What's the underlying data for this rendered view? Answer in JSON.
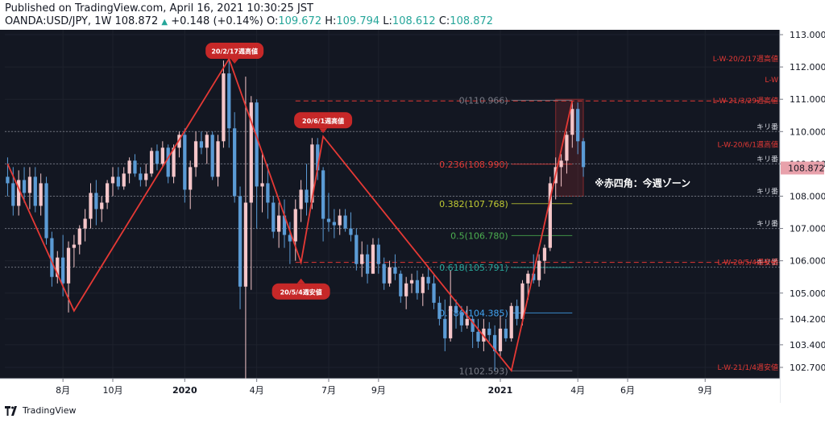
{
  "header": {
    "published": "Published on TradingView.com, April 16, 2021 10:30:25 JST",
    "symbol": "OANDA:USD/JPY, 1W",
    "last": "108.872",
    "change": "+0.148 (+0.14%)",
    "o_label": "O:",
    "o_value": "109.672",
    "h_label": "H:",
    "h_value": "109.794",
    "l_label": "L:",
    "l_value": "108.612",
    "c_label": "C:",
    "c_value": "108.872"
  },
  "footer": {
    "brand": "TradingView"
  },
  "colors": {
    "background": "#131722",
    "bull": "#f5c6c9",
    "bear": "#5b9bd5",
    "zigzag": "#e53935",
    "label_bg": "#c62828",
    "price_badge": "#e8a1ab"
  },
  "chart_data": {
    "type": "candlestick",
    "ylim": [
      102.35,
      113.15
    ],
    "yticks": [
      "113.000",
      "112.000",
      "111.000",
      "110.000",
      "109.000",
      "108.000",
      "107.000",
      "106.000",
      "105.000",
      "104.200",
      "103.400",
      "102.700"
    ],
    "ytick_values": [
      113.0,
      112.0,
      111.0,
      110.0,
      109.0,
      108.0,
      107.0,
      106.0,
      105.0,
      104.2,
      103.4,
      102.7
    ],
    "xticks": [
      {
        "label": "8月",
        "week": 10
      },
      {
        "label": "10月",
        "week": 19
      },
      {
        "label": "2020",
        "week": 32
      },
      {
        "label": "4月",
        "week": 45
      },
      {
        "label": "7月",
        "week": 58
      },
      {
        "label": "9月",
        "week": 67
      },
      {
        "label": "2021",
        "week": 89
      },
      {
        "label": "4月",
        "week": 103
      },
      {
        "label": "6月",
        "week": 112
      },
      {
        "label": "9月",
        "week": 126
      }
    ],
    "last_price": {
      "value": 108.872,
      "label": "108.872"
    },
    "current_week_zone": {
      "from_week": 99,
      "to_week": 104,
      "low": 108.0,
      "high": 111.0,
      "label": "※赤四角：今週ゾーン"
    },
    "horizontal_lines": [
      {
        "value": 110.0,
        "label": "キリ番"
      },
      {
        "value": 109.0,
        "label": "キリ番"
      },
      {
        "value": 108.0,
        "label": "キリ番"
      },
      {
        "value": 107.0,
        "label": "キリ番"
      },
      {
        "value": 105.8,
        "label": "キリ番"
      }
    ],
    "red_levels": [
      {
        "value": 112.25,
        "label": "L-W-20/2/17週高値"
      },
      {
        "value": 111.6,
        "label": "L-W"
      },
      {
        "value": 110.95,
        "label": "L-W-21/3/29週高値",
        "dashed": true
      },
      {
        "value": 109.6,
        "label": "L-W-20/6/1週高値"
      },
      {
        "value": 105.95,
        "label": "L-W-20/5/4週安値",
        "dashed": true
      },
      {
        "value": 102.7,
        "label": "L-W-21/1/4週安値"
      }
    ],
    "fibonacci": [
      {
        "ratio_label": "0(110.966)",
        "value": 110.966,
        "color": "#787b86"
      },
      {
        "ratio_label": "0.236(108.990)",
        "value": 108.99,
        "color": "#e53935"
      },
      {
        "ratio_label": "0.382(107.768)",
        "value": 107.768,
        "color": "#c0ca33"
      },
      {
        "ratio_label": "0.5(106.780)",
        "value": 106.78,
        "color": "#4caf50"
      },
      {
        "ratio_label": "0.618(105.791)",
        "value": 105.791,
        "color": "#26a69a"
      },
      {
        "ratio_label": "0.786(104.385)",
        "value": 104.385,
        "color": "#42a5f5"
      },
      {
        "ratio_label": "1(102.593)",
        "value": 102.593,
        "color": "#787b86"
      }
    ],
    "zigzag": [
      {
        "week": 0,
        "value": 109.0
      },
      {
        "week": 12,
        "value": 104.45
      },
      {
        "week": 40,
        "value": 112.25
      },
      {
        "week": 53,
        "value": 105.95
      },
      {
        "week": 57,
        "value": 109.85
      },
      {
        "week": 91,
        "value": 102.6
      },
      {
        "week": 102,
        "value": 110.95
      }
    ],
    "annotations": [
      {
        "text": "20/2/17週高値",
        "week": 41,
        "value": 112.5,
        "tail": "down"
      },
      {
        "text": "20/6/1週高値",
        "week": 57,
        "value": 110.35,
        "tail": "down"
      },
      {
        "text": "20/5/4週安値",
        "week": 53,
        "value": 105.05,
        "tail": "up"
      }
    ],
    "candles": [
      [
        108.6,
        109.2,
        108.0,
        108.4
      ],
      [
        108.4,
        108.9,
        107.4,
        107.7
      ],
      [
        107.7,
        108.8,
        107.4,
        108.5
      ],
      [
        108.5,
        108.9,
        107.8,
        108.1
      ],
      [
        108.1,
        108.9,
        107.6,
        108.6
      ],
      [
        108.6,
        108.9,
        107.5,
        107.7
      ],
      [
        107.7,
        108.7,
        107.4,
        108.4
      ],
      [
        108.4,
        108.6,
        106.5,
        106.7
      ],
      [
        106.7,
        106.9,
        105.2,
        105.5
      ],
      [
        105.5,
        106.3,
        105.3,
        106.1
      ],
      [
        106.1,
        106.8,
        104.9,
        105.3
      ],
      [
        105.3,
        106.6,
        104.4,
        106.4
      ],
      [
        106.4,
        106.8,
        105.8,
        106.5
      ],
      [
        106.5,
        107.1,
        106.2,
        107.0
      ],
      [
        107.0,
        107.6,
        106.6,
        107.3
      ],
      [
        107.3,
        108.4,
        107.0,
        108.1
      ],
      [
        108.1,
        108.5,
        107.1,
        107.6
      ],
      [
        107.6,
        108.0,
        107.2,
        107.8
      ],
      [
        107.8,
        108.5,
        107.6,
        108.4
      ],
      [
        108.4,
        108.9,
        108.0,
        108.6
      ],
      [
        108.6,
        108.9,
        108.2,
        108.3
      ],
      [
        108.3,
        108.9,
        108.2,
        108.7
      ],
      [
        108.7,
        109.2,
        108.4,
        109.1
      ],
      [
        109.1,
        109.3,
        108.6,
        108.7
      ],
      [
        108.7,
        108.9,
        108.3,
        108.5
      ],
      [
        108.5,
        109.0,
        108.3,
        108.7
      ],
      [
        108.7,
        109.5,
        108.6,
        109.4
      ],
      [
        109.4,
        109.6,
        108.8,
        109.0
      ],
      [
        109.0,
        109.7,
        108.9,
        109.5
      ],
      [
        109.5,
        109.6,
        108.4,
        108.6
      ],
      [
        108.6,
        109.6,
        108.4,
        109.5
      ],
      [
        109.5,
        110.0,
        109.2,
        109.9
      ],
      [
        109.9,
        110.1,
        107.8,
        108.2
      ],
      [
        108.2,
        109.1,
        107.6,
        108.9
      ],
      [
        108.9,
        110.0,
        108.6,
        109.7
      ],
      [
        109.7,
        110.0,
        109.3,
        109.5
      ],
      [
        109.5,
        110.0,
        109.0,
        109.9
      ],
      [
        109.9,
        110.0,
        108.5,
        108.6
      ],
      [
        108.6,
        109.9,
        108.3,
        109.7
      ],
      [
        109.7,
        112.2,
        109.5,
        111.8
      ],
      [
        111.8,
        112.2,
        109.5,
        110.1
      ],
      [
        110.1,
        110.6,
        107.8,
        108.0
      ],
      [
        108.0,
        108.3,
        104.5,
        105.2
      ],
      [
        105.2,
        111.7,
        101.2,
        107.8
      ],
      [
        107.8,
        111.1,
        105.1,
        110.9
      ],
      [
        110.9,
        111.0,
        107.0,
        108.3
      ],
      [
        108.3,
        109.3,
        107.5,
        108.4
      ],
      [
        108.4,
        109.0,
        107.3,
        107.8
      ],
      [
        107.8,
        108.0,
        106.7,
        106.9
      ],
      [
        106.9,
        107.8,
        106.4,
        107.4
      ],
      [
        107.4,
        107.9,
        106.4,
        106.8
      ],
      [
        106.8,
        107.2,
        105.9,
        106.6
      ],
      [
        106.6,
        107.9,
        106.0,
        107.6
      ],
      [
        107.6,
        108.5,
        107.2,
        108.2
      ],
      [
        108.2,
        109.0,
        107.4,
        107.8
      ],
      [
        107.8,
        109.8,
        107.6,
        109.6
      ],
      [
        109.6,
        109.8,
        108.5,
        108.8
      ],
      [
        108.8,
        108.9,
        106.6,
        107.3
      ],
      [
        107.3,
        108.1,
        106.9,
        107.2
      ],
      [
        107.2,
        107.6,
        106.7,
        107.1
      ],
      [
        107.1,
        107.6,
        106.8,
        107.4
      ],
      [
        107.4,
        107.6,
        106.9,
        107.0
      ],
      [
        107.0,
        107.5,
        106.6,
        106.8
      ],
      [
        106.8,
        107.0,
        105.7,
        105.9
      ],
      [
        105.9,
        106.6,
        105.5,
        106.2
      ],
      [
        106.2,
        106.5,
        105.3,
        105.6
      ],
      [
        105.6,
        106.7,
        105.6,
        106.5
      ],
      [
        106.5,
        106.7,
        105.6,
        105.9
      ],
      [
        105.9,
        106.1,
        105.1,
        105.3
      ],
      [
        105.3,
        106.0,
        105.2,
        105.8
      ],
      [
        105.8,
        106.2,
        105.4,
        105.6
      ],
      [
        105.6,
        105.7,
        104.7,
        104.9
      ],
      [
        104.9,
        105.5,
        104.5,
        105.3
      ],
      [
        105.3,
        105.6,
        105.0,
        105.4
      ],
      [
        105.4,
        105.7,
        104.8,
        105.0
      ],
      [
        105.0,
        105.6,
        104.6,
        105.5
      ],
      [
        105.5,
        105.8,
        105.1,
        105.3
      ],
      [
        105.3,
        105.6,
        104.5,
        104.7
      ],
      [
        104.7,
        104.9,
        104.0,
        104.2
      ],
      [
        104.2,
        104.8,
        103.2,
        103.6
      ],
      [
        103.6,
        105.7,
        103.5,
        104.6
      ],
      [
        104.6,
        104.8,
        103.9,
        104.4
      ],
      [
        104.4,
        104.6,
        103.8,
        104.0
      ],
      [
        104.0,
        104.6,
        103.9,
        104.2
      ],
      [
        104.2,
        104.3,
        103.3,
        103.8
      ],
      [
        103.8,
        104.2,
        103.3,
        103.5
      ],
      [
        103.5,
        104.2,
        103.2,
        103.9
      ],
      [
        103.9,
        104.1,
        103.5,
        103.7
      ],
      [
        103.7,
        104.0,
        102.6,
        103.2
      ],
      [
        103.2,
        104.3,
        103.0,
        103.9
      ],
      [
        103.9,
        104.2,
        103.5,
        103.6
      ],
      [
        103.6,
        104.7,
        103.5,
        104.6
      ],
      [
        104.6,
        104.8,
        104.0,
        104.2
      ],
      [
        104.2,
        105.4,
        104.0,
        105.3
      ],
      [
        105.3,
        105.7,
        104.8,
        105.6
      ],
      [
        105.6,
        106.2,
        105.3,
        105.4
      ],
      [
        105.4,
        106.2,
        105.2,
        106.0
      ],
      [
        106.0,
        106.5,
        105.6,
        106.4
      ],
      [
        106.4,
        108.6,
        106.3,
        108.4
      ],
      [
        108.4,
        109.2,
        107.9,
        108.9
      ],
      [
        108.9,
        109.3,
        108.3,
        109.1
      ],
      [
        109.1,
        110.0,
        108.7,
        109.9
      ],
      [
        109.9,
        110.9,
        109.5,
        110.7
      ],
      [
        110.7,
        110.9,
        109.3,
        109.7
      ],
      [
        109.7,
        109.8,
        108.6,
        108.9
      ]
    ]
  }
}
